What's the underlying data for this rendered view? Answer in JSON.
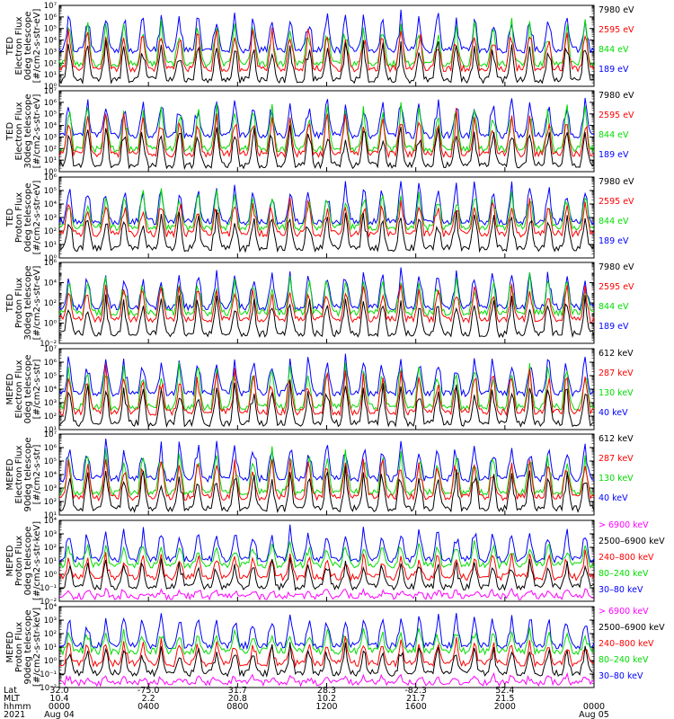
{
  "chart_data": [
    {
      "type": "line",
      "ylabel": [
        "TED",
        "Electron Flux",
        "0deg telescope",
        "[#/cm2-s-str-eV]"
      ],
      "log_scale": true,
      "ylim_exp": [
        0,
        7
      ],
      "tick_labels": [
        "10⁰",
        "10¹",
        "10²",
        "10³",
        "10⁴",
        "10⁵",
        "10⁶",
        "10⁷"
      ],
      "series": [
        {
          "name": "7980 eV",
          "color": "#000000"
        },
        {
          "name": "2595 eV",
          "color": "#ff0000"
        },
        {
          "name": "844 eV",
          "color": "#00dd00"
        },
        {
          "name": "189 eV",
          "color": "#0000ff"
        }
      ]
    },
    {
      "type": "line",
      "ylabel": [
        "TED",
        "Electron Flux",
        "30deg telescope",
        "[#/cm2-s-str-eV]"
      ],
      "log_scale": true,
      "ylim_exp": [
        0,
        7
      ],
      "tick_labels": [
        "10⁰",
        "10¹",
        "10²",
        "10³",
        "10⁴",
        "10⁵",
        "10⁶",
        "10⁷"
      ],
      "series": [
        {
          "name": "7980 eV",
          "color": "#000000"
        },
        {
          "name": "2595 eV",
          "color": "#ff0000"
        },
        {
          "name": "844 eV",
          "color": "#00dd00"
        },
        {
          "name": "189 eV",
          "color": "#0000ff"
        }
      ]
    },
    {
      "type": "line",
      "ylabel": [
        "TED",
        "Proton Flux",
        "0deg telescope",
        "[#/cm2-s-str-eV]"
      ],
      "log_scale": true,
      "ylim_exp": [
        0,
        6
      ],
      "tick_labels": [
        "10⁰",
        "10¹",
        "10²",
        "10³",
        "10⁴",
        "10⁵",
        "10⁶"
      ],
      "series": [
        {
          "name": "7980 eV",
          "color": "#000000"
        },
        {
          "name": "2595 eV",
          "color": "#ff0000"
        },
        {
          "name": "844 eV",
          "color": "#00dd00"
        },
        {
          "name": "189 eV",
          "color": "#0000ff"
        }
      ]
    },
    {
      "type": "line",
      "ylabel": [
        "TED",
        "Proton Flux",
        "30deg telescope",
        "[#/cm2-s-str-eV]"
      ],
      "log_scale": true,
      "ylim_exp": [
        -2,
        6
      ],
      "tick_labels": [
        "10⁻²",
        "10⁰",
        "10²",
        "10⁴",
        "10⁶"
      ],
      "series": [
        {
          "name": "7980 eV",
          "color": "#000000"
        },
        {
          "name": "2595 eV",
          "color": "#ff0000"
        },
        {
          "name": "844 eV",
          "color": "#00dd00"
        },
        {
          "name": "189 eV",
          "color": "#0000ff"
        }
      ]
    },
    {
      "type": "line",
      "ylabel": [
        "MEPED",
        "Electron Flux",
        "0deg telescope",
        "[#/cm2-s-str]"
      ],
      "log_scale": true,
      "ylim_exp": [
        1,
        7
      ],
      "tick_labels": [
        "10¹",
        "10²",
        "10³",
        "10⁴",
        "10⁵",
        "10⁶",
        "10⁷"
      ],
      "series": [
        {
          "name": "612 keV",
          "color": "#000000"
        },
        {
          "name": "287 keV",
          "color": "#ff0000"
        },
        {
          "name": "130 keV",
          "color": "#00dd00"
        },
        {
          "name": "40 keV",
          "color": "#0000ff"
        }
      ]
    },
    {
      "type": "line",
      "ylabel": [
        "MEPED",
        "Electron Flux",
        "90deg telescope",
        "[#/cm2-s-str]"
      ],
      "log_scale": true,
      "ylim_exp": [
        1,
        7
      ],
      "tick_labels": [
        "10¹",
        "10²",
        "10³",
        "10⁴",
        "10⁵",
        "10⁶",
        "10⁷"
      ],
      "series": [
        {
          "name": "612 keV",
          "color": "#000000"
        },
        {
          "name": "287 keV",
          "color": "#ff0000"
        },
        {
          "name": "130 keV",
          "color": "#00dd00"
        },
        {
          "name": "40 keV",
          "color": "#0000ff"
        }
      ]
    },
    {
      "type": "line",
      "ylabel": [
        "MEPED",
        "Proton Flux",
        "0deg telescope",
        "[#/cm2-s-str-keV]"
      ],
      "log_scale": true,
      "ylim_exp": [
        -2,
        4
      ],
      "tick_labels": [
        "10⁻²",
        "10⁻¹",
        "10⁰",
        "10¹",
        "10²",
        "10³",
        "10⁴"
      ],
      "series": [
        {
          "name": "> 6900 keV",
          "color": "#ff00ff"
        },
        {
          "name": "2500–6900 keV",
          "color": "#000000"
        },
        {
          "name": "240–800 keV",
          "color": "#ff0000"
        },
        {
          "name": "80–240 keV",
          "color": "#00dd00"
        },
        {
          "name": "30–80 keV",
          "color": "#0000ff"
        }
      ]
    },
    {
      "type": "line",
      "ylabel": [
        "MEPED",
        "Proton Flux",
        "90deg telescope",
        "[#/cm2-s-str-keV]"
      ],
      "log_scale": true,
      "ylim_exp": [
        -2,
        4
      ],
      "tick_labels": [
        "10⁻²",
        "10⁻¹",
        "10⁰",
        "10¹",
        "10²",
        "10³",
        "10⁴"
      ],
      "series": [
        {
          "name": "> 6900 keV",
          "color": "#ff00ff"
        },
        {
          "name": "2500–6900 keV",
          "color": "#000000"
        },
        {
          "name": "240–800 keV",
          "color": "#ff0000"
        },
        {
          "name": "80–240 keV",
          "color": "#00dd00"
        },
        {
          "name": "30–80 keV",
          "color": "#0000ff"
        }
      ]
    }
  ],
  "x_axis": {
    "row_labels": [
      "Lat",
      "MLT",
      "hhmm",
      "2021"
    ],
    "ticks": [
      {
        "lat": "32.0",
        "mlt": "10.4",
        "hhmm": "0000",
        "date": "Aug 04"
      },
      {
        "lat": "-75.0",
        "mlt": "2.2",
        "hhmm": "0400",
        "date": ""
      },
      {
        "lat": "31.7",
        "mlt": "20.8",
        "hhmm": "0800",
        "date": ""
      },
      {
        "lat": "28.3",
        "mlt": "10.2",
        "hhmm": "1200",
        "date": ""
      },
      {
        "lat": "-82.3",
        "mlt": "21.7",
        "hhmm": "1600",
        "date": ""
      },
      {
        "lat": "52.4",
        "mlt": "21.5",
        "hhmm": "2000",
        "date": ""
      },
      {
        "lat": "",
        "mlt": "",
        "hhmm": "0000",
        "date": "Aug 05"
      }
    ]
  }
}
